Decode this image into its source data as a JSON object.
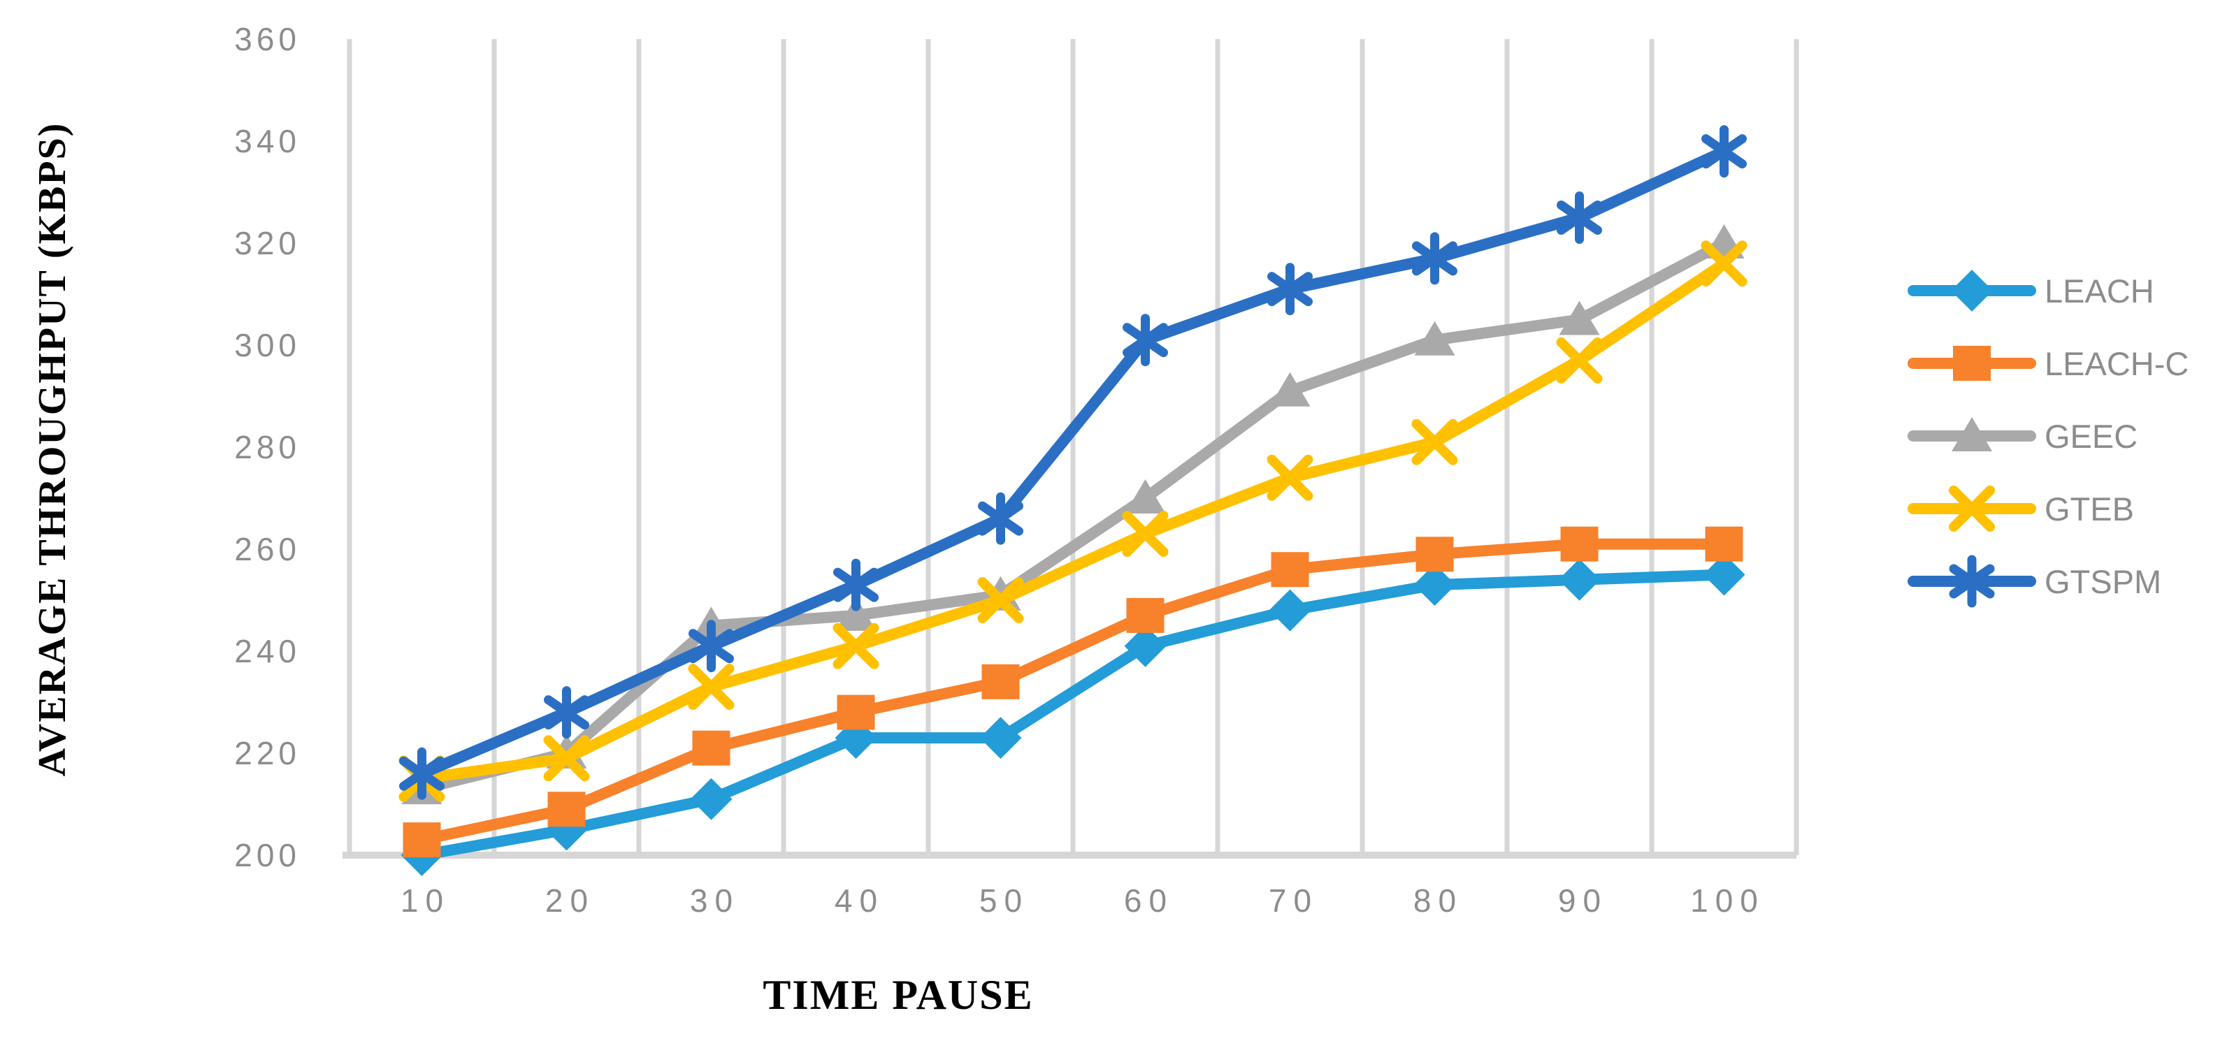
{
  "chart_data": {
    "type": "line",
    "title": "",
    "xlabel": "TIME PAUSE",
    "ylabel": "AVERAGE THROUGHPUT (KBPS)",
    "categories": [
      10,
      20,
      30,
      40,
      50,
      60,
      70,
      80,
      90,
      100
    ],
    "series": [
      {
        "name": "LEACH",
        "marker": "diamond",
        "color": "#239cd8",
        "values": [
          200,
          205,
          211,
          223,
          223,
          241,
          248,
          253,
          254,
          255
        ]
      },
      {
        "name": "LEACH-C",
        "marker": "square",
        "color": "#f8812b",
        "values": [
          203,
          209,
          221,
          228,
          234,
          247,
          256,
          259,
          261,
          261
        ]
      },
      {
        "name": "GEEC",
        "marker": "triangle",
        "color": "#a9a9a9",
        "values": [
          213,
          220,
          245,
          247,
          251,
          270,
          291,
          301,
          305,
          320
        ]
      },
      {
        "name": "GTEB",
        "marker": "x",
        "color": "#ffc000",
        "values": [
          215,
          219,
          233,
          241,
          250,
          263,
          274,
          281,
          297,
          316
        ]
      },
      {
        "name": "GTSPM",
        "marker": "asterisk",
        "color": "#2a6fc4",
        "values": [
          216,
          228,
          241,
          253,
          266,
          301,
          311,
          317,
          325,
          338
        ]
      }
    ],
    "ylim": [
      200,
      360
    ],
    "ytick_step": 20,
    "yticks": [
      200,
      220,
      240,
      260,
      280,
      300,
      320,
      340,
      360
    ],
    "grid": "vertical-only",
    "legend_position": "right",
    "styles": {
      "grid_color": "#d6d6d6",
      "axis_line_color": "#d6d6d6",
      "tick_label_color": "#8c8c8c",
      "legend_label_color": "#8c8c8c"
    }
  }
}
